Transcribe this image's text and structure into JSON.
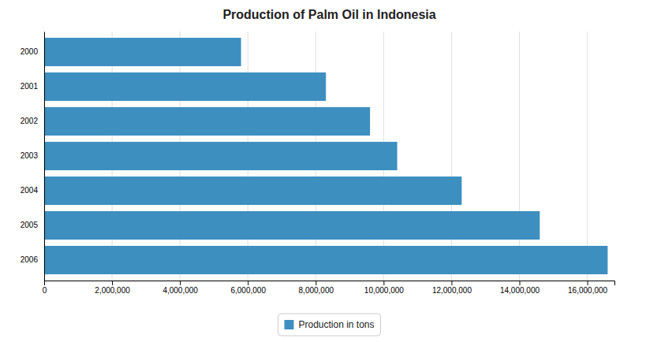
{
  "chart_data": {
    "type": "bar",
    "orientation": "horizontal",
    "title": "Production of Palm Oil in Indonesia",
    "categories": [
      "2000",
      "2001",
      "2002",
      "2003",
      "2004",
      "2005",
      "2006"
    ],
    "series": [
      {
        "name": "Production in tons",
        "color": "#3d8fc0",
        "values": [
          5800000,
          8300000,
          9600000,
          10400000,
          12300000,
          14600000,
          16600000
        ]
      }
    ],
    "xlim": [
      0,
      16800000
    ],
    "xticks": [
      0,
      {
        "value": 2000000,
        "label": "2,000,000"
      },
      {
        "value": 4000000,
        "label": "4,000,000"
      },
      {
        "value": 6000000,
        "label": "6,000,000"
      },
      {
        "value": 8000000,
        "label": "8,000,000"
      },
      {
        "value": 10000000,
        "label": "10,000,000"
      },
      {
        "value": 12000000,
        "label": "12,000,000"
      },
      {
        "value": 14000000,
        "label": "14,000,000"
      },
      {
        "value": 16000000,
        "label": "16,000,000"
      }
    ],
    "grid": true,
    "legend": "bottom"
  }
}
